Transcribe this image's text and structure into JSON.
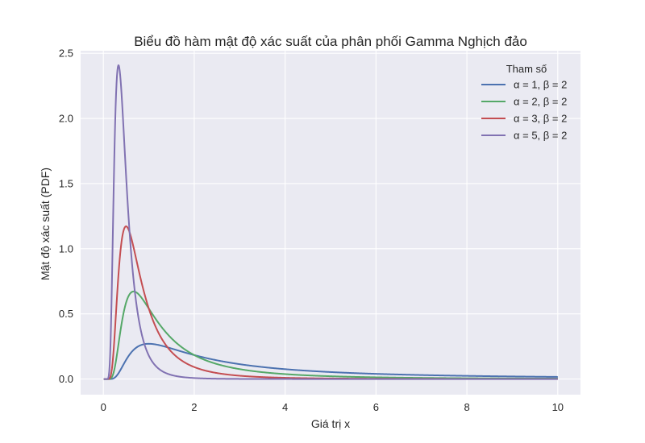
{
  "chart_data": {
    "type": "line",
    "title": "Biểu đồ hàm mật độ xác suất của phân phối Gamma Nghịch đảo",
    "xlabel": "Giá trị x",
    "ylabel": "Mật độ xác suất (PDF)",
    "xlim": [
      -0.5,
      10.5
    ],
    "ylim": [
      -0.12,
      2.52
    ],
    "xticks": [
      0,
      2,
      4,
      6,
      8,
      10
    ],
    "xtick_labels": [
      "0",
      "2",
      "4",
      "6",
      "8",
      "10"
    ],
    "yticks": [
      0.0,
      0.5,
      1.0,
      1.5,
      2.0,
      2.5
    ],
    "ytick_labels": [
      "0.0",
      "0.5",
      "1.0",
      "1.5",
      "2.0",
      "2.5"
    ],
    "grid": true,
    "legend": {
      "title": "Tham số",
      "position": "top-right"
    },
    "x_range": [
      0.01,
      10
    ],
    "series": [
      {
        "name": "α = 1, β = 2",
        "alpha": 1,
        "beta": 2,
        "color": "#4c72b0"
      },
      {
        "name": "α = 2, β = 2",
        "alpha": 2,
        "beta": 2,
        "color": "#55a868"
      },
      {
        "name": "α = 3, β = 2",
        "alpha": 3,
        "beta": 2,
        "color": "#c44e52"
      },
      {
        "name": "α = 5, β = 2",
        "alpha": 5,
        "beta": 2,
        "color": "#8172b2"
      }
    ]
  }
}
